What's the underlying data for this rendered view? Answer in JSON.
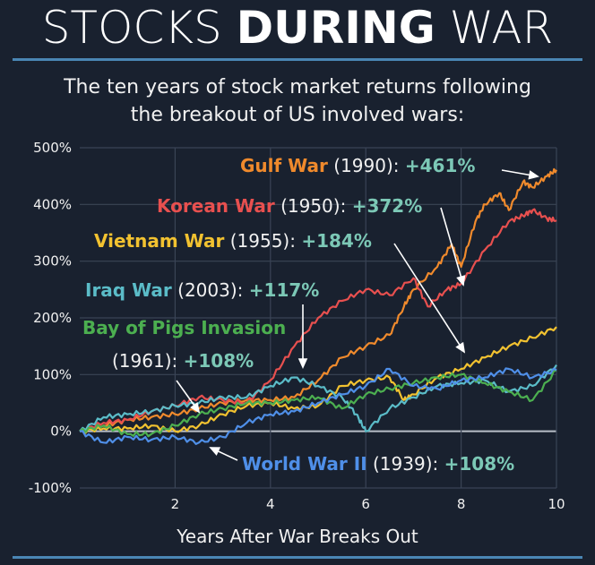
{
  "header": {
    "title_pre": "STOCKS ",
    "title_bold": "DURING",
    "title_post": " WAR",
    "subtitle_line1": "The ten years of stock market returns following",
    "subtitle_line2": "the breakout of US involved wars:"
  },
  "colors": {
    "background": "#19212f",
    "rule": "#4a86b4",
    "percent": "#7cc8b6",
    "grid": "#3a4456"
  },
  "chart_data": {
    "type": "line",
    "title": "STOCKS DURING WAR",
    "xlabel": "Years After War Breaks Out",
    "ylabel": "",
    "xlim": [
      0,
      10
    ],
    "ylim": [
      -100,
      500
    ],
    "xticks": [
      2,
      4,
      6,
      8,
      10
    ],
    "yticks": [
      -100,
      0,
      100,
      200,
      300,
      400,
      500
    ],
    "ytick_labels": [
      "-100%",
      "0%",
      "100%",
      "200%",
      "300%",
      "400%",
      "500%"
    ],
    "grid": true,
    "series": [
      {
        "name": "Gulf War",
        "year": "(1990):",
        "total": "+461%",
        "color": "#f08a2c",
        "x": [
          0,
          0.5,
          1,
          1.5,
          2,
          2.5,
          3,
          3.5,
          4,
          4.5,
          5,
          5.5,
          6,
          6.5,
          6.8,
          7,
          7.5,
          7.8,
          8,
          8.3,
          8.5,
          8.8,
          9,
          9.3,
          9.5,
          9.8,
          10
        ],
        "y": [
          0,
          10,
          20,
          25,
          30,
          40,
          50,
          55,
          55,
          60,
          90,
          130,
          150,
          170,
          220,
          250,
          290,
          330,
          290,
          370,
          400,
          420,
          390,
          440,
          430,
          450,
          461
        ]
      },
      {
        "name": "Korean War",
        "year": "(1950):",
        "total": "+372%",
        "color": "#e8504f",
        "x": [
          0,
          0.5,
          1,
          1.5,
          2,
          2.5,
          3,
          3.5,
          4,
          4.5,
          5,
          5.5,
          6,
          6.5,
          7,
          7.3,
          7.7,
          8,
          8.5,
          9,
          9.3,
          9.5,
          9.8,
          10
        ],
        "y": [
          0,
          15,
          20,
          35,
          45,
          60,
          55,
          50,
          90,
          150,
          200,
          230,
          250,
          240,
          270,
          220,
          250,
          260,
          320,
          370,
          380,
          390,
          375,
          372
        ]
      },
      {
        "name": "Vietnam War",
        "year": "(1955):",
        "total": "+184%",
        "color": "#f2c230",
        "x": [
          0,
          0.5,
          1,
          1.5,
          2,
          2.5,
          3,
          3.5,
          4,
          4.5,
          5,
          5.5,
          6,
          6.5,
          6.8,
          7,
          7.5,
          8,
          8.5,
          9,
          9.5,
          10
        ],
        "y": [
          0,
          5,
          5,
          10,
          0,
          10,
          30,
          45,
          50,
          40,
          45,
          80,
          90,
          95,
          55,
          65,
          95,
          110,
          130,
          150,
          165,
          184
        ]
      },
      {
        "name": "Iraq War",
        "year": "(2003):",
        "total": "+117%",
        "color": "#5bbcc8",
        "x": [
          0,
          0.5,
          1,
          1.5,
          2,
          2.5,
          3,
          3.5,
          4,
          4.5,
          5,
          5.5,
          5.8,
          6,
          6.5,
          7,
          7.5,
          8,
          8.5,
          9,
          9.5,
          10
        ],
        "y": [
          0,
          25,
          30,
          35,
          45,
          50,
          60,
          60,
          80,
          95,
          80,
          60,
          30,
          0,
          40,
          60,
          80,
          85,
          90,
          70,
          80,
          117
        ]
      },
      {
        "name": "Bay of Pigs Invasion",
        "year": "(1961):",
        "total": "+108%",
        "color": "#4caf50",
        "x": [
          0,
          0.5,
          1,
          1.5,
          2,
          2.5,
          3,
          3.5,
          4,
          4.5,
          5,
          5.5,
          6,
          6.5,
          7,
          7.5,
          8,
          8.5,
          9,
          9.5,
          10
        ],
        "y": [
          0,
          10,
          -5,
          -5,
          10,
          30,
          40,
          50,
          50,
          55,
          60,
          40,
          65,
          75,
          85,
          95,
          100,
          85,
          70,
          55,
          108
        ]
      },
      {
        "name": "World War II",
        "year": "(1939):",
        "total": "+108%",
        "color": "#4f8fe8",
        "x": [
          0,
          0.5,
          1,
          1.5,
          2,
          2.5,
          3,
          3.5,
          4,
          4.5,
          5,
          5.5,
          6,
          6.5,
          7,
          7.5,
          8,
          8.5,
          9,
          9.5,
          10
        ],
        "y": [
          0,
          -20,
          -10,
          -15,
          -10,
          -20,
          -10,
          15,
          30,
          35,
          50,
          65,
          80,
          110,
          80,
          75,
          90,
          95,
          110,
          95,
          108
        ]
      }
    ]
  }
}
